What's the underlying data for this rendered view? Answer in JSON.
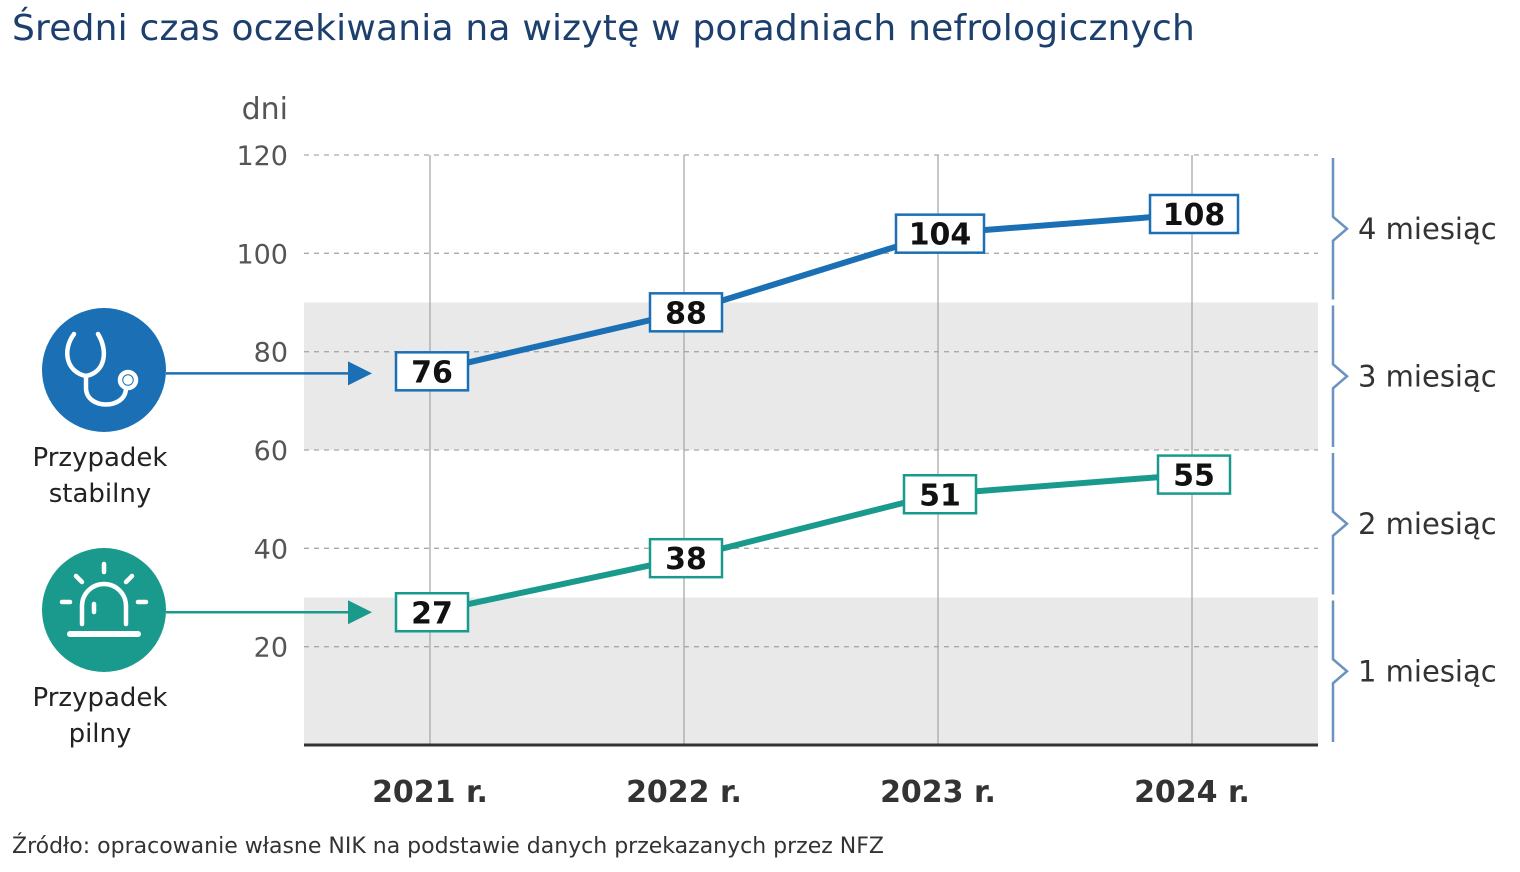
{
  "title": "Średni czas oczekiwania na wizytę w poradniach nefrologicznych",
  "source": "Źródło: opracowanie własne NIK na podstawie danych przekazanych przez NFZ",
  "chart_data": {
    "type": "line",
    "ylabel": "dni",
    "ylim": [
      0,
      120
    ],
    "yticks": [
      "20",
      "40",
      "60",
      "80",
      "100",
      "120"
    ],
    "categories": [
      "2021 r.",
      "2022 r.",
      "2023 r.",
      "2024 r."
    ],
    "series": [
      {
        "name": "Przypadek stabilny",
        "name_lines": [
          "Przypadek",
          "stabilny"
        ],
        "icon": "stethoscope-icon",
        "values": [
          76,
          88,
          104,
          108
        ],
        "labels": [
          "76",
          "88",
          "104",
          "108"
        ],
        "color": "#1a6fb5"
      },
      {
        "name": "Przypadek pilny",
        "name_lines": [
          "Przypadek",
          "pilny"
        ],
        "icon": "siren-icon",
        "values": [
          27,
          38,
          51,
          55
        ],
        "labels": [
          "27",
          "38",
          "51",
          "55"
        ],
        "color": "#1a9a8c"
      }
    ],
    "bands": [
      {
        "label": "1 miesiąc",
        "from": 0,
        "to": 30
      },
      {
        "label": "2 miesiąc",
        "from": 30,
        "to": 60
      },
      {
        "label": "3 miesiąc",
        "from": 60,
        "to": 90
      },
      {
        "label": "4 miesiąc",
        "from": 90,
        "to": 120
      }
    ],
    "grid": true
  }
}
